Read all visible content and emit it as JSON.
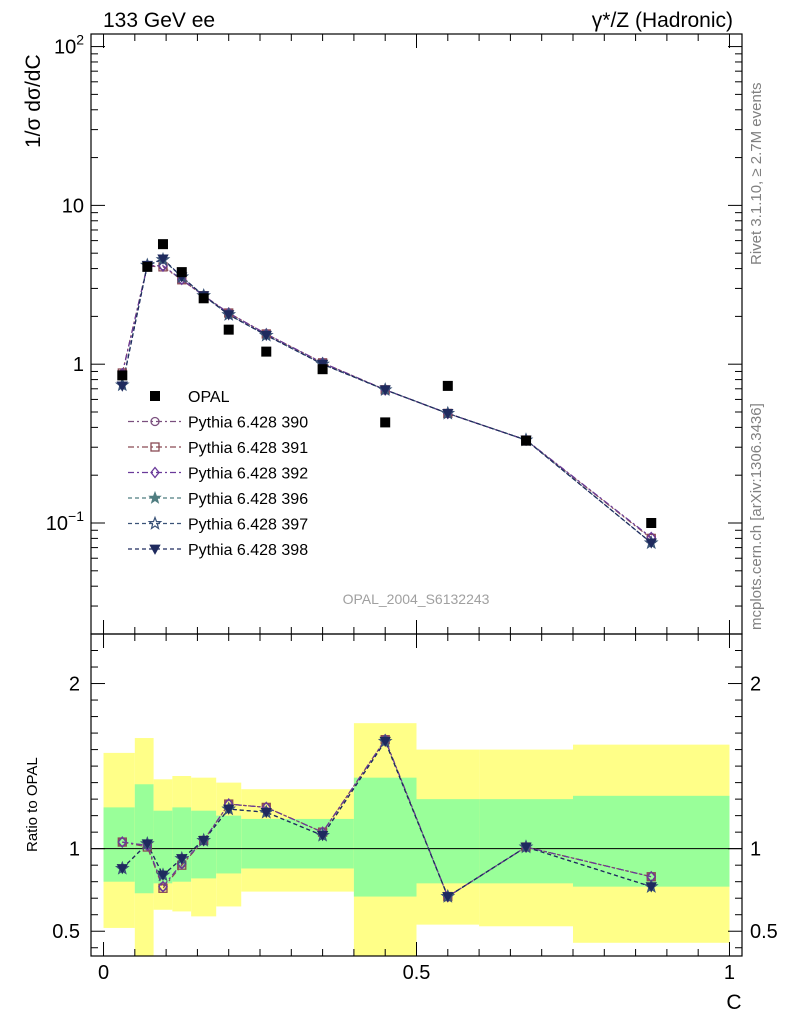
{
  "header": {
    "left": "133 GeV ee",
    "right": "γ*/Z (Hadronic)"
  },
  "side_labels": {
    "rivet": "Rivet 3.1.10, ≥ 2.7M events",
    "mcplots": "mcplots.cern.ch [arXiv:1306.3436]"
  },
  "watermark": "OPAL_2004_S6132243",
  "chart_data": [
    {
      "type": "scatter",
      "scale": "log",
      "ylabel": "1/σ dσ/dC",
      "ylim": [
        0.02,
        120
      ],
      "xlim": [
        -0.02,
        1.02
      ],
      "y_ticks": [
        {
          "value": 0.1,
          "label": "10",
          "sup": "−1"
        },
        {
          "value": 1,
          "label": "1",
          "sup": ""
        },
        {
          "value": 10,
          "label": "10",
          "sup": ""
        },
        {
          "value": 100,
          "label": "10",
          "sup": "2"
        }
      ],
      "legend_position": "middle-left",
      "data_series": {
        "name": "OPAL",
        "color": "#000000",
        "x": [
          0.03,
          0.07,
          0.095,
          0.125,
          0.16,
          0.2,
          0.26,
          0.35,
          0.45,
          0.55,
          0.675,
          0.875
        ],
        "y": [
          0.85,
          4.1,
          5.7,
          3.8,
          2.6,
          1.65,
          1.2,
          0.93,
          0.43,
          0.73,
          0.33,
          0.1
        ]
      },
      "series": [
        {
          "name": "Pythia 6.428 390",
          "marker": "circle",
          "color": "#7a4f7e",
          "dash": "6,3,2,3",
          "x": [
            0.03,
            0.07,
            0.095,
            0.125,
            0.16,
            0.2,
            0.26,
            0.35,
            0.45,
            0.55,
            0.675,
            0.875
          ],
          "y": [
            0.87,
            4.18,
            4.17,
            3.4,
            2.7,
            2.1,
            1.55,
            1.02,
            0.69,
            0.49,
            0.333,
            0.081
          ]
        },
        {
          "name": "Pythia 6.428 391",
          "marker": "square",
          "color": "#8a4a55",
          "dash": "6,3,2,3",
          "x": [
            0.03,
            0.07,
            0.095,
            0.125,
            0.16,
            0.2,
            0.26,
            0.35,
            0.45,
            0.55,
            0.675,
            0.875
          ],
          "y": [
            0.88,
            4.15,
            4.1,
            3.4,
            2.7,
            2.1,
            1.55,
            1.02,
            0.69,
            0.49,
            0.333,
            0.08
          ]
        },
        {
          "name": "Pythia 6.428 392",
          "marker": "diamond",
          "color": "#6a3a9a",
          "dash": "6,3,2,3",
          "x": [
            0.03,
            0.07,
            0.095,
            0.125,
            0.16,
            0.2,
            0.26,
            0.35,
            0.45,
            0.55,
            0.675,
            0.875
          ],
          "y": [
            0.87,
            4.16,
            4.15,
            3.42,
            2.7,
            2.1,
            1.55,
            1.02,
            0.69,
            0.49,
            0.333,
            0.081
          ]
        },
        {
          "name": "Pythia 6.428 396",
          "marker": "star-filled",
          "color": "#4f7d80",
          "dash": "4,3",
          "x": [
            0.03,
            0.07,
            0.095,
            0.125,
            0.16,
            0.2,
            0.26,
            0.35,
            0.45,
            0.55,
            0.675,
            0.875
          ],
          "y": [
            0.74,
            4.2,
            4.55,
            3.55,
            2.7,
            2.05,
            1.52,
            1.0,
            0.69,
            0.49,
            0.333,
            0.075
          ]
        },
        {
          "name": "Pythia 6.428 397",
          "marker": "star-open",
          "color": "#3b5378",
          "dash": "4,3",
          "x": [
            0.03,
            0.07,
            0.095,
            0.125,
            0.16,
            0.2,
            0.26,
            0.35,
            0.45,
            0.55,
            0.675,
            0.875
          ],
          "y": [
            0.74,
            4.2,
            4.55,
            3.55,
            2.7,
            2.05,
            1.52,
            1.0,
            0.69,
            0.49,
            0.333,
            0.075
          ]
        },
        {
          "name": "Pythia 6.428 398",
          "marker": "triangle-down",
          "color": "#1f2a5e",
          "dash": "4,3",
          "x": [
            0.03,
            0.07,
            0.095,
            0.125,
            0.16,
            0.2,
            0.26,
            0.35,
            0.45,
            0.55,
            0.675,
            0.875
          ],
          "y": [
            0.73,
            4.2,
            4.6,
            3.55,
            2.7,
            2.05,
            1.52,
            1.0,
            0.69,
            0.49,
            0.333,
            0.075
          ]
        }
      ]
    },
    {
      "type": "line",
      "ylabel": "Ratio to OPAL",
      "xlabel": "C",
      "ylim": [
        0.35,
        2.3
      ],
      "xlim": [
        -0.02,
        1.02
      ],
      "y_ticks": [
        {
          "value": 0.5,
          "label": "0.5"
        },
        {
          "value": 1,
          "label": "1"
        },
        {
          "value": 2,
          "label": "2"
        }
      ],
      "x_ticks": [
        {
          "value": 0,
          "label": "0"
        },
        {
          "value": 0.5,
          "label": "0.5"
        },
        {
          "value": 1,
          "label": "1"
        }
      ],
      "reference_line": 1,
      "bands": {
        "outer_color": "#ffff88",
        "inner_color": "#99ff99",
        "bins": [
          {
            "x0": 0.0,
            "x1": 0.05,
            "inner": [
              0.8,
              1.25
            ],
            "outer": [
              0.52,
              1.58
            ]
          },
          {
            "x0": 0.05,
            "x1": 0.08,
            "inner": [
              0.73,
              1.39
            ],
            "outer": [
              0.3,
              1.67
            ]
          },
          {
            "x0": 0.08,
            "x1": 0.11,
            "inner": [
              0.79,
              1.23
            ],
            "outer": [
              0.63,
              1.42
            ]
          },
          {
            "x0": 0.11,
            "x1": 0.14,
            "inner": [
              0.8,
              1.25
            ],
            "outer": [
              0.62,
              1.44
            ]
          },
          {
            "x0": 0.14,
            "x1": 0.18,
            "inner": [
              0.82,
              1.23
            ],
            "outer": [
              0.59,
              1.43
            ]
          },
          {
            "x0": 0.18,
            "x1": 0.22,
            "inner": [
              0.85,
              1.2
            ],
            "outer": [
              0.65,
              1.4
            ]
          },
          {
            "x0": 0.22,
            "x1": 0.4,
            "inner": [
              0.88,
              1.18
            ],
            "outer": [
              0.74,
              1.36
            ]
          },
          {
            "x0": 0.4,
            "x1": 0.5,
            "inner": [
              0.71,
              1.43
            ],
            "outer": [
              0.3,
              1.76
            ]
          },
          {
            "x0": 0.5,
            "x1": 0.6,
            "inner": [
              0.79,
              1.3
            ],
            "outer": [
              0.54,
              1.6
            ]
          },
          {
            "x0": 0.6,
            "x1": 0.75,
            "inner": [
              0.79,
              1.3
            ],
            "outer": [
              0.53,
              1.6
            ]
          },
          {
            "x0": 0.75,
            "x1": 1.0,
            "inner": [
              0.77,
              1.32
            ],
            "outer": [
              0.43,
              1.63
            ]
          }
        ]
      },
      "series": [
        {
          "name": "Pythia 6.428 390",
          "marker": "circle",
          "color": "#7a4f7e",
          "dash": "6,3,2,3",
          "x": [
            0.03,
            0.07,
            0.095,
            0.125,
            0.16,
            0.2,
            0.26,
            0.35,
            0.45,
            0.55,
            0.675,
            0.875
          ],
          "y": [
            1.04,
            1.02,
            0.77,
            0.91,
            1.05,
            1.27,
            1.25,
            1.1,
            1.66,
            0.71,
            1.01,
            0.83
          ]
        },
        {
          "name": "Pythia 6.428 391",
          "marker": "square",
          "color": "#8a4a55",
          "dash": "6,3,2,3",
          "x": [
            0.03,
            0.07,
            0.095,
            0.125,
            0.16,
            0.2,
            0.26,
            0.35,
            0.45,
            0.55,
            0.675,
            0.875
          ],
          "y": [
            1.04,
            1.01,
            0.76,
            0.9,
            1.05,
            1.27,
            1.25,
            1.1,
            1.66,
            0.71,
            1.01,
            0.83
          ]
        },
        {
          "name": "Pythia 6.428 392",
          "marker": "diamond",
          "color": "#6a3a9a",
          "dash": "6,3,2,3",
          "x": [
            0.03,
            0.07,
            0.095,
            0.125,
            0.16,
            0.2,
            0.26,
            0.35,
            0.45,
            0.55,
            0.675,
            0.875
          ],
          "y": [
            1.04,
            1.02,
            0.77,
            0.91,
            1.05,
            1.27,
            1.25,
            1.1,
            1.66,
            0.71,
            1.01,
            0.83
          ]
        },
        {
          "name": "Pythia 6.428 396",
          "marker": "star-filled",
          "color": "#4f7d80",
          "dash": "4,3",
          "x": [
            0.03,
            0.07,
            0.095,
            0.125,
            0.16,
            0.2,
            0.26,
            0.35,
            0.45,
            0.55,
            0.675,
            0.875
          ],
          "y": [
            0.88,
            1.03,
            0.84,
            0.94,
            1.05,
            1.24,
            1.22,
            1.08,
            1.65,
            0.71,
            1.01,
            0.77
          ]
        },
        {
          "name": "Pythia 6.428 397",
          "marker": "star-open",
          "color": "#3b5378",
          "dash": "4,3",
          "x": [
            0.03,
            0.07,
            0.095,
            0.125,
            0.16,
            0.2,
            0.26,
            0.35,
            0.45,
            0.55,
            0.675,
            0.875
          ],
          "y": [
            0.88,
            1.03,
            0.84,
            0.94,
            1.05,
            1.24,
            1.22,
            1.08,
            1.65,
            0.71,
            1.01,
            0.77
          ]
        },
        {
          "name": "Pythia 6.428 398",
          "marker": "triangle-down",
          "color": "#1f2a5e",
          "dash": "4,3",
          "x": [
            0.03,
            0.07,
            0.095,
            0.125,
            0.16,
            0.2,
            0.26,
            0.35,
            0.45,
            0.55,
            0.675,
            0.875
          ],
          "y": [
            0.88,
            1.03,
            0.84,
            0.94,
            1.05,
            1.24,
            1.22,
            1.08,
            1.65,
            0.71,
            1.01,
            0.77
          ]
        }
      ]
    }
  ]
}
